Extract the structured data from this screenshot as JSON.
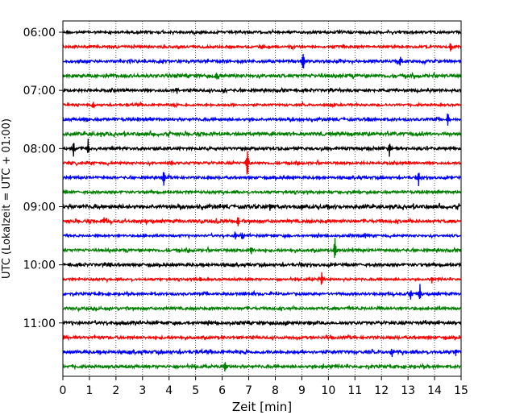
{
  "chart_data": {
    "type": "line",
    "title": "",
    "xlabel": "Zeit  [min]",
    "ylabel": "UTC (Lokalzeit = UTC + 01:00)",
    "xlim": [
      0,
      15
    ],
    "x_ticks": [
      "0",
      "1",
      "2",
      "3",
      "4",
      "5",
      "6",
      "7",
      "8",
      "9",
      "10",
      "11",
      "12",
      "13",
      "14",
      "15"
    ],
    "y_ticks": [
      "06:00",
      "07:00",
      "08:00",
      "09:00",
      "10:00",
      "11:00"
    ],
    "grid": "vertical-dotted",
    "trace_colors": [
      "#000000",
      "#ff0000",
      "#0000ff",
      "#008000"
    ],
    "traces": [
      {
        "start": "06:00",
        "noise": 0.9,
        "events": []
      },
      {
        "start": "06:15",
        "noise": 0.9,
        "events": [
          {
            "t": 14.6,
            "amp": 7
          }
        ]
      },
      {
        "start": "06:30",
        "noise": 1.0,
        "events": [
          {
            "t": 9.05,
            "amp": 14
          },
          {
            "t": 12.7,
            "amp": 8
          }
        ]
      },
      {
        "start": "06:45",
        "noise": 1.2,
        "events": [
          {
            "t": 5.8,
            "amp": 4
          }
        ]
      },
      {
        "start": "07:00",
        "noise": 1.0,
        "events": [
          {
            "t": 4.3,
            "amp": 6
          },
          {
            "t": 6.1,
            "amp": 5
          }
        ]
      },
      {
        "start": "07:15",
        "noise": 0.8,
        "events": [
          {
            "t": 1.15,
            "amp": 7
          }
        ]
      },
      {
        "start": "07:30",
        "noise": 1.0,
        "events": [
          {
            "t": 0.9,
            "amp": 4
          },
          {
            "t": 11.5,
            "amp": 4
          },
          {
            "t": 14.5,
            "amp": 10
          }
        ]
      },
      {
        "start": "07:45",
        "noise": 1.2,
        "events": []
      },
      {
        "start": "08:00",
        "noise": 1.0,
        "events": [
          {
            "t": 0.4,
            "amp": 10
          },
          {
            "t": 0.95,
            "amp": 10
          },
          {
            "t": 11.5,
            "amp": 4
          },
          {
            "t": 12.3,
            "amp": 13
          }
        ]
      },
      {
        "start": "08:15",
        "noise": 0.9,
        "events": [
          {
            "t": 4.1,
            "amp": 3
          },
          {
            "t": 6.95,
            "amp": 22
          }
        ]
      },
      {
        "start": "08:30",
        "noise": 0.9,
        "events": [
          {
            "t": 3.8,
            "amp": 15
          },
          {
            "t": 13.4,
            "amp": 12
          }
        ]
      },
      {
        "start": "08:45",
        "noise": 0.9,
        "events": []
      },
      {
        "start": "09:00",
        "noise": 1.3,
        "events": [
          {
            "t": 7.8,
            "amp": 5
          },
          {
            "t": 9.0,
            "amp": 4
          }
        ]
      },
      {
        "start": "09:15",
        "noise": 1.1,
        "events": [
          {
            "t": 1.55,
            "amp": 5
          },
          {
            "t": 5.8,
            "amp": 4
          },
          {
            "t": 6.6,
            "amp": 8
          }
        ]
      },
      {
        "start": "09:30",
        "noise": 0.8,
        "events": [
          {
            "t": 6.5,
            "amp": 8
          },
          {
            "t": 6.75,
            "amp": 6
          },
          {
            "t": 11.4,
            "amp": 5
          }
        ]
      },
      {
        "start": "09:45",
        "noise": 1.0,
        "events": [
          {
            "t": 7.1,
            "amp": 6
          },
          {
            "t": 10.25,
            "amp": 16
          }
        ]
      },
      {
        "start": "10:00",
        "noise": 1.0,
        "events": [
          {
            "t": 1.8,
            "amp": 5
          },
          {
            "t": 9.0,
            "amp": 4
          }
        ]
      },
      {
        "start": "10:15",
        "noise": 0.8,
        "events": [
          {
            "t": 5.2,
            "amp": 4
          },
          {
            "t": 9.75,
            "amp": 10
          },
          {
            "t": 13.9,
            "amp": 5
          }
        ]
      },
      {
        "start": "10:30",
        "noise": 0.9,
        "events": [
          {
            "t": 13.1,
            "amp": 8
          },
          {
            "t": 13.45,
            "amp": 14
          }
        ]
      },
      {
        "start": "10:45",
        "noise": 1.0,
        "events": []
      },
      {
        "start": "11:00",
        "noise": 1.1,
        "events": [
          {
            "t": 8.4,
            "amp": 5
          },
          {
            "t": 9.3,
            "amp": 4
          }
        ]
      },
      {
        "start": "11:15",
        "noise": 1.0,
        "events": []
      },
      {
        "start": "11:30",
        "noise": 1.1,
        "events": [
          {
            "t": 12.4,
            "amp": 5
          },
          {
            "t": 14.8,
            "amp": 4
          }
        ]
      },
      {
        "start": "11:45",
        "noise": 1.0,
        "events": [
          {
            "t": 6.1,
            "amp": 10
          },
          {
            "t": 9.8,
            "amp": 5
          }
        ]
      }
    ]
  }
}
